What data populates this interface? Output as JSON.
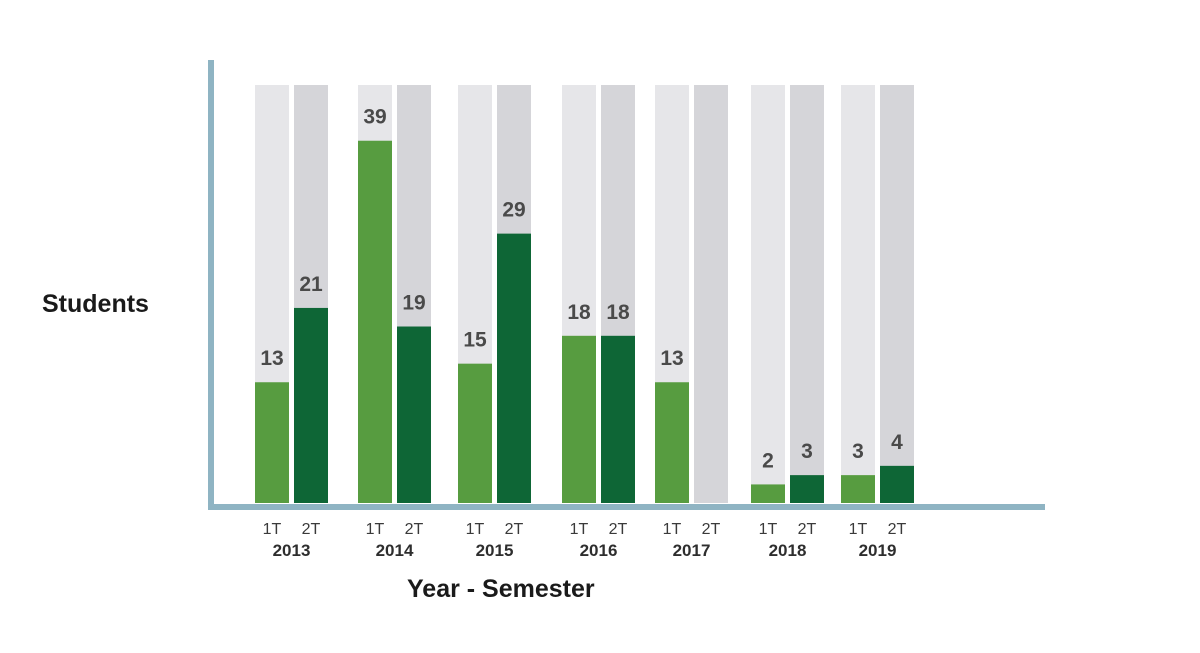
{
  "chart_data": {
    "type": "bar",
    "xlabel": "Year - Semester",
    "ylabel": "Students",
    "ylim": [
      0,
      45
    ],
    "grid": false,
    "background_bars": true,
    "years": [
      "2013",
      "2014",
      "2015",
      "2016",
      "2017",
      "2018",
      "2019"
    ],
    "semester_labels": [
      "1T",
      "2T"
    ],
    "series": [
      {
        "name": "1T",
        "values": [
          13,
          39,
          15,
          18,
          13,
          2,
          3
        ]
      },
      {
        "name": "2T",
        "values": [
          21,
          19,
          29,
          18,
          null,
          3,
          4
        ]
      }
    ],
    "colors": {
      "first_semester": "#579c40",
      "second_semester": "#0e6636",
      "track_light": "#e6e6e9",
      "track_dark": "#d5d5d9",
      "axis": "#8fb4c3",
      "value_text": "#4a4a4a"
    }
  }
}
